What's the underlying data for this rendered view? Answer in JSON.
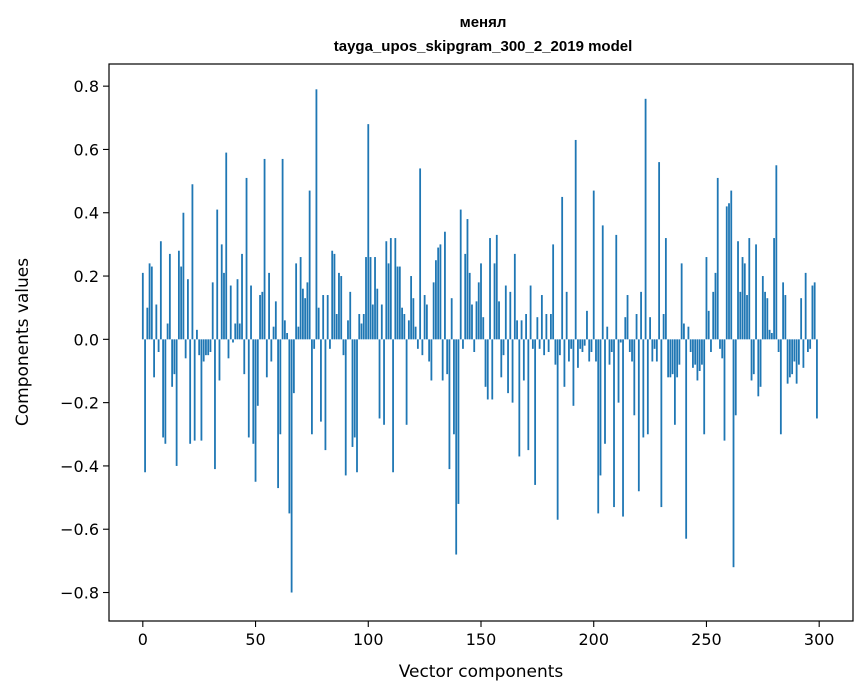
{
  "chart_data": {
    "type": "bar",
    "title": "менял",
    "subtitle": "tayga_upos_skipgram_300_2_2019 model",
    "xlabel": "Vector components",
    "ylabel": "Components values",
    "xlim": [
      -15,
      315
    ],
    "ylim": [
      -0.89,
      0.87
    ],
    "xticks": [
      0,
      50,
      100,
      150,
      200,
      250,
      300
    ],
    "yticks": [
      -0.8,
      -0.6,
      -0.4,
      -0.2,
      0.0,
      0.2,
      0.4,
      0.6,
      0.8
    ],
    "ytick_labels": [
      "−0.8",
      "−0.6",
      "−0.4",
      "−0.2",
      "0.0",
      "0.2",
      "0.4",
      "0.6",
      "0.8"
    ],
    "bar_color": "#1f77b4",
    "grid": false,
    "x": "0..299 (component index)",
    "values": [
      0.21,
      -0.42,
      0.1,
      0.24,
      0.23,
      -0.12,
      0.11,
      -0.04,
      0.31,
      -0.31,
      -0.33,
      0.05,
      0.27,
      -0.15,
      -0.11,
      -0.4,
      0.28,
      0.23,
      0.4,
      -0.06,
      0.19,
      -0.33,
      0.49,
      -0.32,
      0.03,
      -0.05,
      -0.32,
      -0.07,
      -0.05,
      -0.05,
      -0.04,
      0.18,
      -0.41,
      0.41,
      -0.13,
      0.3,
      0.21,
      0.59,
      -0.06,
      0.17,
      -0.01,
      0.05,
      0.19,
      0.05,
      0.27,
      -0.11,
      0.51,
      -0.31,
      0.17,
      -0.33,
      -0.45,
      -0.21,
      0.14,
      0.15,
      0.57,
      -0.12,
      0.21,
      -0.07,
      0.04,
      0.12,
      -0.47,
      -0.3,
      0.57,
      0.06,
      0.02,
      -0.55,
      -0.8,
      -0.17,
      0.24,
      0.04,
      0.26,
      0.16,
      0.13,
      0.18,
      0.47,
      -0.3,
      -0.03,
      0.79,
      0.1,
      -0.26,
      0.14,
      -0.35,
      0.14,
      -0.03,
      0.28,
      0.27,
      0.08,
      0.21,
      0.2,
      -0.05,
      -0.43,
      0.06,
      0.15,
      -0.34,
      -0.31,
      -0.42,
      0.08,
      0.05,
      0.08,
      0.26,
      0.68,
      0.26,
      0.11,
      0.26,
      0.16,
      -0.25,
      0.11,
      -0.27,
      0.31,
      0.24,
      0.32,
      -0.42,
      0.32,
      0.23,
      0.23,
      0.1,
      0.08,
      -0.27,
      0.06,
      0.2,
      0.13,
      0.04,
      -0.03,
      0.54,
      -0.05,
      0.14,
      0.11,
      -0.07,
      -0.13,
      0.18,
      0.25,
      0.29,
      0.3,
      -0.13,
      0.34,
      -0.11,
      -0.41,
      0.13,
      -0.3,
      -0.68,
      -0.52,
      0.41,
      -0.03,
      0.27,
      0.38,
      0.21,
      0.11,
      -0.04,
      0.12,
      0.18,
      0.24,
      0.07,
      -0.15,
      -0.19,
      0.32,
      -0.19,
      0.24,
      0.33,
      0.12,
      -0.12,
      -0.05,
      0.17,
      -0.17,
      0.15,
      -0.2,
      0.27,
      0.06,
      -0.37,
      0.06,
      -0.13,
      0.08,
      -0.35,
      0.17,
      -0.03,
      -0.46,
      0.07,
      -0.03,
      0.14,
      -0.05,
      0.08,
      -0.04,
      0.08,
      0.3,
      -0.08,
      -0.57,
      -0.05,
      0.45,
      -0.15,
      0.15,
      -0.07,
      -0.03,
      -0.21,
      0.63,
      -0.09,
      -0.03,
      -0.04,
      -0.02,
      0.09,
      -0.07,
      -0.04,
      0.47,
      -0.07,
      -0.55,
      -0.43,
      0.36,
      -0.33,
      0.04,
      -0.08,
      -0.04,
      -0.53,
      0.33,
      -0.2,
      -0.01,
      -0.56,
      0.07,
      0.14,
      -0.04,
      -0.07,
      -0.24,
      0.08,
      -0.48,
      0.15,
      -0.31,
      0.76,
      -0.3,
      0.07,
      -0.07,
      -0.03,
      -0.07,
      0.56,
      -0.53,
      0.08,
      0.32,
      -0.12,
      -0.12,
      -0.11,
      -0.27,
      -0.12,
      -0.08,
      0.24,
      0.05,
      -0.63,
      0.04,
      -0.04,
      -0.09,
      -0.08,
      -0.13,
      -0.1,
      -0.08,
      -0.3,
      0.26,
      0.09,
      -0.04,
      0.15,
      0.21,
      0.51,
      -0.03,
      -0.06,
      -0.32,
      0.42,
      0.43,
      0.47,
      -0.72,
      -0.24,
      0.31,
      0.15,
      0.26,
      0.24,
      0.14,
      0.32,
      -0.13,
      -0.11,
      0.3,
      -0.18,
      -0.15,
      0.2,
      0.15,
      0.13,
      0.03,
      0.02,
      0.32,
      0.55,
      -0.04,
      -0.3,
      0.18,
      0.14,
      -0.14,
      -0.12,
      -0.11,
      -0.07,
      -0.14,
      -0.08,
      0.13,
      -0.09,
      0.21,
      -0.04,
      -0.03,
      0.17,
      0.18,
      -0.25
    ]
  }
}
